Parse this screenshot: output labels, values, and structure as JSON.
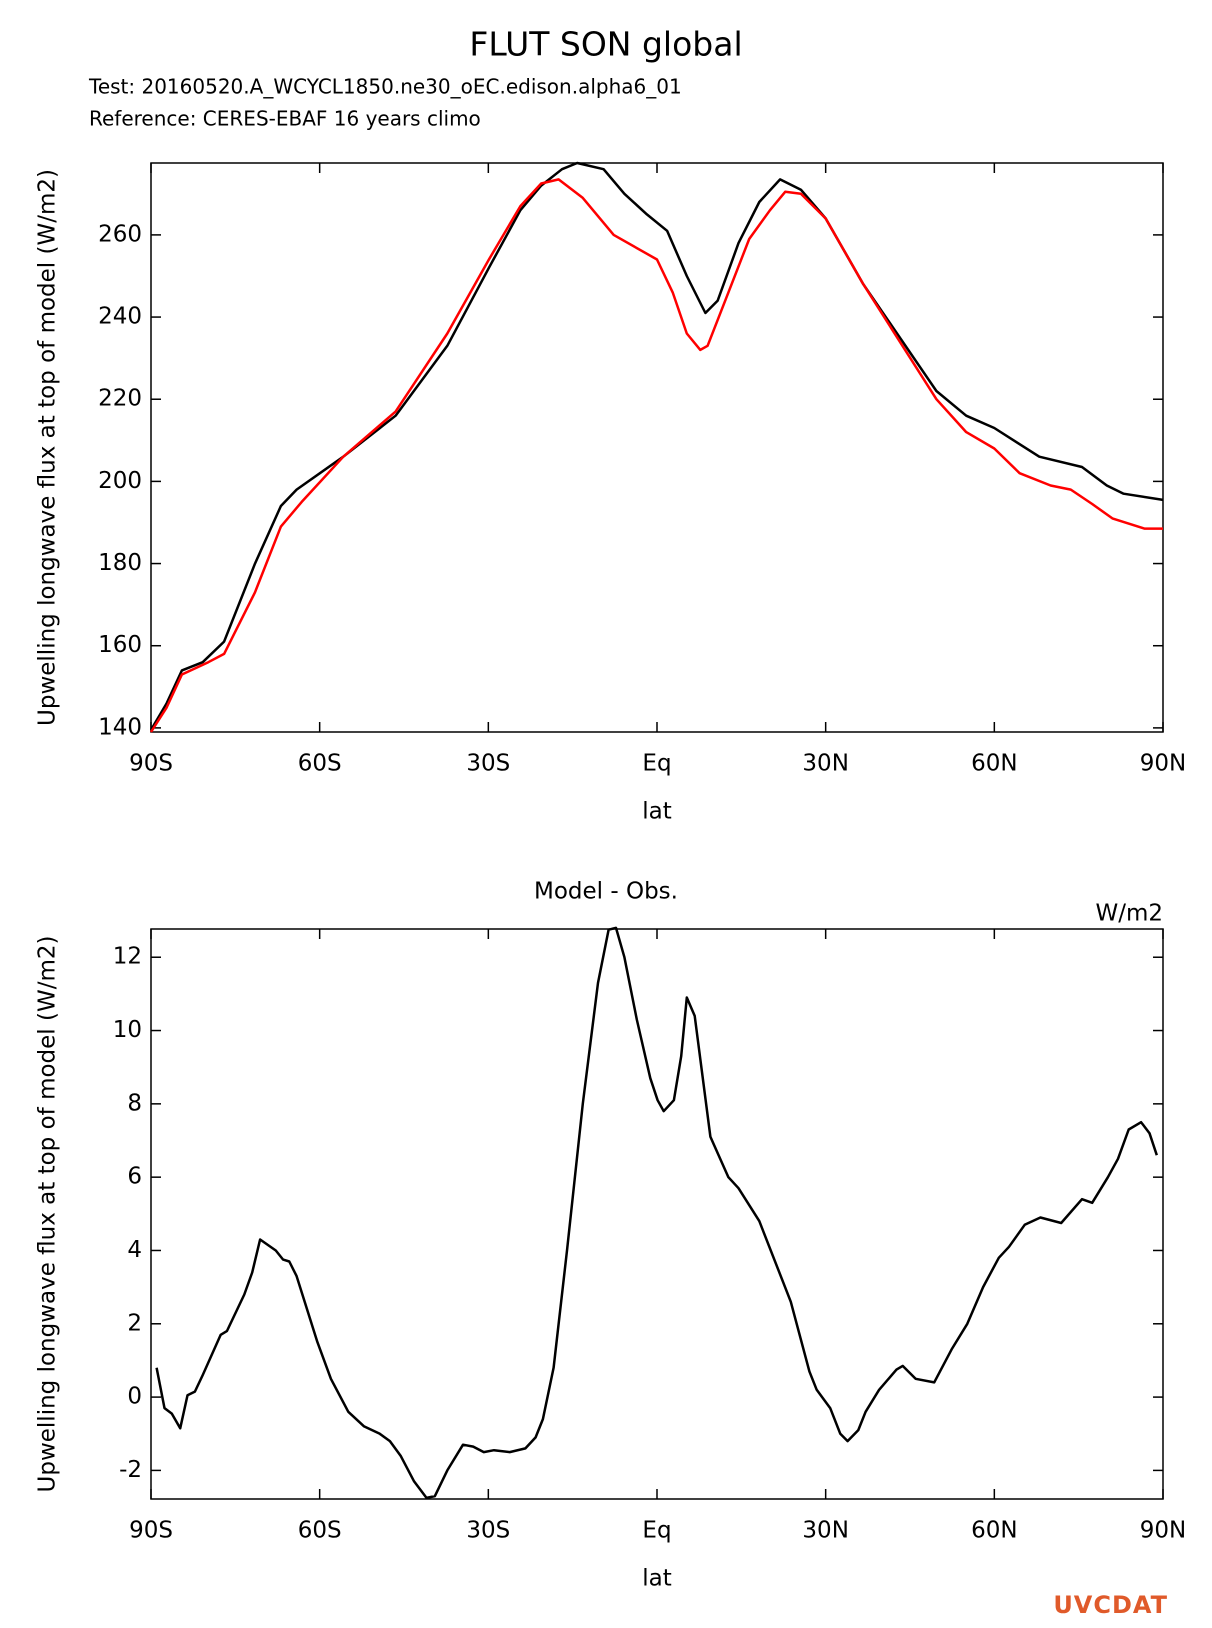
{
  "chart_data": [
    {
      "type": "line",
      "title": "FLUT SON global",
      "ylabel": "Upwelling longwave flux at top of model (W/m2)",
      "xlabel": "lat",
      "xlim": [
        -90,
        90
      ],
      "ylim": [
        139,
        277.5
      ],
      "xticks": [
        {
          "value": -90,
          "label": "90S"
        },
        {
          "value": -60,
          "label": "60S"
        },
        {
          "value": -30,
          "label": "30S"
        },
        {
          "value": 0,
          "label": "Eq"
        },
        {
          "value": 30,
          "label": "30N"
        },
        {
          "value": 60,
          "label": "60N"
        },
        {
          "value": 90,
          "label": "90N"
        }
      ],
      "yticks": [
        140,
        160,
        180,
        200,
        220,
        240,
        260
      ],
      "series": [
        {
          "name": "Test: 20160520.A_WCYCL1850.ne30_oEC.edison.alpha6_01",
          "color": "#000000",
          "x": [
            -90,
            -87.2,
            -84.5,
            -80.8,
            -77,
            -71.5,
            -66.9,
            -64.1,
            -55.8,
            -46.5,
            -37.3,
            -29.9,
            -24.3,
            -20.6,
            -16.9,
            -14.2,
            -9.5,
            -5.8,
            -1.8,
            1.8,
            5.3,
            8.6,
            10.8,
            14.5,
            18.2,
            21.9,
            25.6,
            30,
            36.7,
            49.7,
            55,
            60,
            68,
            75.6,
            80,
            83,
            90
          ],
          "values": [
            139.5,
            146,
            154,
            156,
            161,
            180,
            194,
            198,
            206,
            216,
            233,
            252,
            266,
            272,
            276,
            277.5,
            276,
            270,
            265,
            261,
            250,
            241,
            244,
            258,
            268,
            273.5,
            271,
            264,
            248,
            222,
            216,
            213,
            206,
            203.5,
            199,
            197,
            195.5
          ]
        },
        {
          "name": "Reference: CERES-EBAF 16 years climo",
          "color": "#ff0000",
          "x": [
            -90,
            -87.2,
            -84.5,
            -79.8,
            -77,
            -71.5,
            -66.9,
            -63.2,
            -55.8,
            -46.5,
            -37.3,
            -29.9,
            -24.3,
            -20.6,
            -17.5,
            -13.2,
            -7.7,
            0,
            2.8,
            5.3,
            7.7,
            9,
            12.7,
            16.4,
            20.1,
            22.8,
            25.6,
            30,
            36.7,
            49.7,
            55,
            60,
            64.5,
            70,
            73.6,
            77.4,
            81,
            86.7,
            90
          ],
          "values": [
            139,
            145,
            153,
            156,
            158,
            173,
            189,
            195,
            206,
            217,
            236,
            254,
            267,
            272.5,
            273.5,
            269,
            260,
            254,
            246,
            236,
            232,
            233,
            246,
            259,
            266,
            270.5,
            270,
            264,
            248,
            220,
            212,
            208,
            202,
            199,
            198,
            194.5,
            191,
            188.5,
            188.5
          ]
        }
      ]
    },
    {
      "type": "line",
      "title": "Model - Obs.",
      "units": "W/m2",
      "ylabel": "Upwelling longwave flux at top of model (W/m2)",
      "xlabel": "lat",
      "xlim": [
        -90,
        90
      ],
      "ylim": [
        -2.78,
        12.77
      ],
      "xticks": [
        {
          "value": -90,
          "label": "90S"
        },
        {
          "value": -60,
          "label": "60S"
        },
        {
          "value": -30,
          "label": "30S"
        },
        {
          "value": 0,
          "label": "Eq"
        },
        {
          "value": 30,
          "label": "30N"
        },
        {
          "value": 60,
          "label": "60N"
        },
        {
          "value": 90,
          "label": "90N"
        }
      ],
      "yticks": [
        -2,
        0,
        2,
        4,
        6,
        8,
        10,
        12
      ],
      "series": [
        {
          "color": "#000000",
          "x": [
            -89,
            -87.6,
            -86.3,
            -84.8,
            -83.5,
            -82.2,
            -80.8,
            -77.6,
            -76.5,
            -73.4,
            -72,
            -70.6,
            -67.8,
            -66.5,
            -65.4,
            -64.1,
            -60.4,
            -58,
            -54.9,
            -52.1,
            -49.3,
            -47.5,
            -45.6,
            -43.2,
            -41,
            -39.5,
            -37.3,
            -34.5,
            -32.7,
            -30.8,
            -29,
            -26.2,
            -23.4,
            -21.6,
            -20.3,
            -18.4,
            -16,
            -13.2,
            -10.5,
            -8.6,
            -7.3,
            -5.8,
            -3.6,
            -1.2,
            0.1,
            1.2,
            3,
            4.3,
            5.3,
            6.7,
            9.5,
            12.7,
            14.5,
            18.2,
            23.8,
            27.1,
            28.4,
            30.8,
            32.6,
            33.9,
            35.8,
            37.1,
            39.5,
            42.6,
            43.7,
            46,
            49.3,
            52.4,
            55.2,
            58,
            60.8,
            62.6,
            65.4,
            68.2,
            71.9,
            75.6,
            77.4,
            80.2,
            82,
            83.9,
            86.1,
            87.6,
            88.9
          ],
          "values": [
            0.8,
            -0.3,
            -0.45,
            -0.85,
            0.05,
            0.15,
            0.6,
            1.7,
            1.8,
            2.8,
            3.4,
            4.3,
            4.0,
            3.75,
            3.7,
            3.3,
            1.5,
            0.5,
            -0.4,
            -0.8,
            -1.0,
            -1.2,
            -1.6,
            -2.3,
            -2.75,
            -2.7,
            -2.0,
            -1.3,
            -1.35,
            -1.5,
            -1.45,
            -1.5,
            -1.4,
            -1.1,
            -0.6,
            0.8,
            4.0,
            8.0,
            11.3,
            12.75,
            12.8,
            12.0,
            10.3,
            8.7,
            8.1,
            7.8,
            8.1,
            9.3,
            10.9,
            10.4,
            7.1,
            6.0,
            5.7,
            4.8,
            2.6,
            0.7,
            0.2,
            -0.3,
            -1.0,
            -1.2,
            -0.9,
            -0.4,
            0.2,
            0.75,
            0.85,
            0.5,
            0.4,
            1.3,
            2.0,
            3.0,
            3.8,
            4.1,
            4.7,
            4.9,
            4.75,
            5.4,
            5.3,
            6.0,
            6.5,
            7.3,
            7.5,
            7.2,
            6.6
          ]
        }
      ]
    }
  ],
  "logo": "UVCDAT"
}
